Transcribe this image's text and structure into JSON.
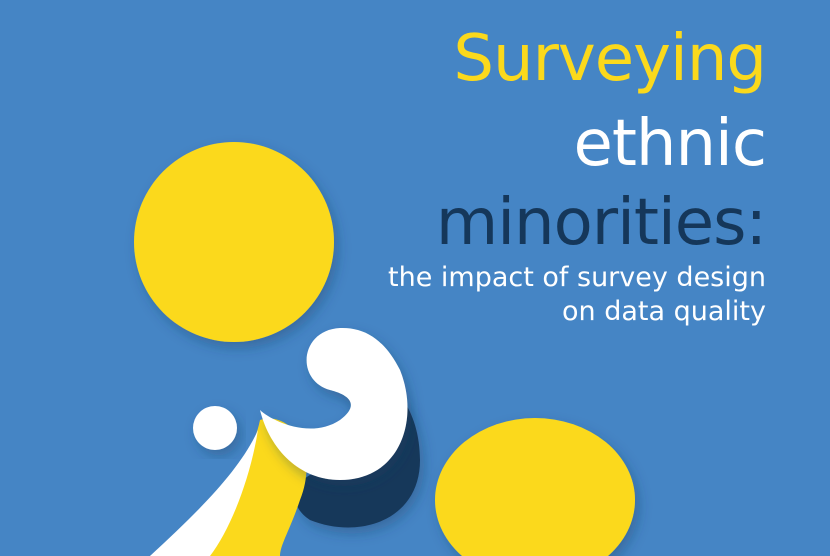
{
  "title": {
    "line1": "Surveying",
    "line2": "ethnic",
    "line3": "minorities:"
  },
  "subtitle": {
    "line1": "the impact of survey design",
    "line2": "on data quality"
  }
}
